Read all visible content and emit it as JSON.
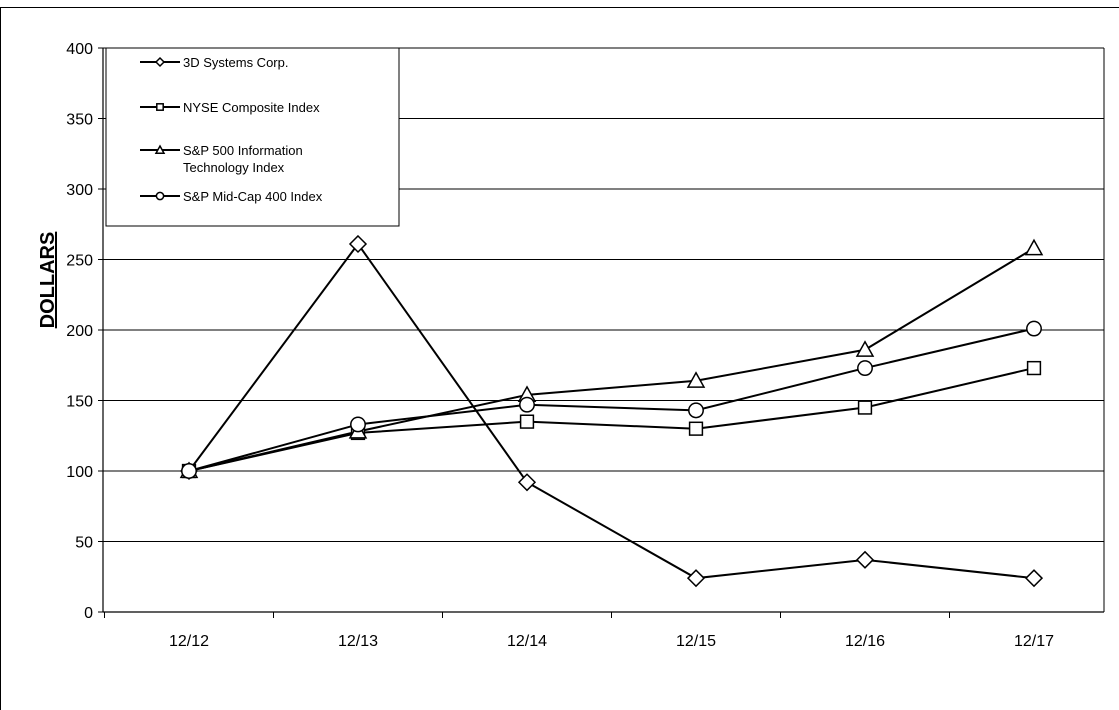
{
  "chart_data": {
    "type": "line",
    "title": "",
    "xlabel": "",
    "ylabel": "DOLLARS",
    "categories": [
      "12/12",
      "12/13",
      "12/14",
      "12/15",
      "12/16",
      "12/17"
    ],
    "ylim": [
      0,
      400
    ],
    "yticks": [
      0,
      50,
      100,
      150,
      200,
      250,
      300,
      350,
      400
    ],
    "grid": "horizontal",
    "legend": "top-left",
    "series": [
      {
        "name": "3D Systems Corp.",
        "marker": "diamond",
        "values": [
          100,
          261,
          92,
          24,
          37,
          24
        ]
      },
      {
        "name": "NYSE Composite Index",
        "marker": "square",
        "values": [
          100,
          127,
          135,
          130,
          145,
          173
        ]
      },
      {
        "name": "S&P 500 Information Technology Index",
        "name_lines": [
          "S&P 500 Information",
          "Technology Index"
        ],
        "marker": "triangle",
        "values": [
          100,
          128,
          154,
          164,
          186,
          258
        ]
      },
      {
        "name": "S&P Mid-Cap 400 Index",
        "marker": "circle",
        "values": [
          100,
          133,
          147,
          143,
          173,
          201
        ]
      }
    ]
  }
}
